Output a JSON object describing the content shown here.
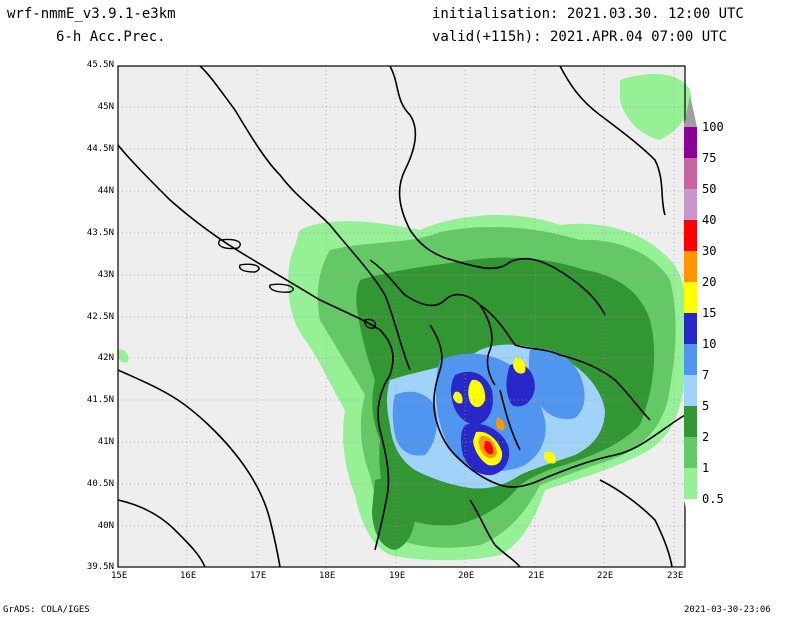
{
  "header": {
    "model": "wrf-nmmE_v3.9.1-e3km",
    "field": "6-h Acc.Prec.",
    "init": "initialisation: 2021.03.30.  12:00 UTC",
    "valid": "valid(+115h): 2021.APR.04 07:00 UTC"
  },
  "footer": {
    "credit": "GrADS: COLA/IGES",
    "timestamp": "2021-03-30-23:06"
  },
  "axes": {
    "lat_labels": [
      "45.5N",
      "45N",
      "44.5N",
      "44N",
      "43.5N",
      "43N",
      "42.5N",
      "42N",
      "41.5N",
      "41N",
      "40.5N",
      "40N",
      "39.5N"
    ],
    "lon_labels": [
      "15E",
      "16E",
      "17E",
      "18E",
      "19E",
      "20E",
      "21E",
      "22E",
      "23E"
    ],
    "lat_range": [
      39.5,
      45.5
    ],
    "lon_range": [
      15,
      23.3
    ],
    "grid": true
  },
  "colorbar": {
    "labels": [
      "100",
      "75",
      "50",
      "40",
      "30",
      "20",
      "15",
      "10",
      "7",
      "5",
      "2",
      "1",
      "0.5"
    ],
    "colors": [
      "#a0a0a0",
      "#8c0096",
      "#c864a0",
      "#c896c8",
      "#ff0000",
      "#ff9600",
      "#ffff00",
      "#2828c8",
      "#5096f0",
      "#a0d2fa",
      "#329632",
      "#64c864",
      "#96f096"
    ]
  },
  "colors": {
    "background": "#eeeeee",
    "land_border": "#000000"
  }
}
